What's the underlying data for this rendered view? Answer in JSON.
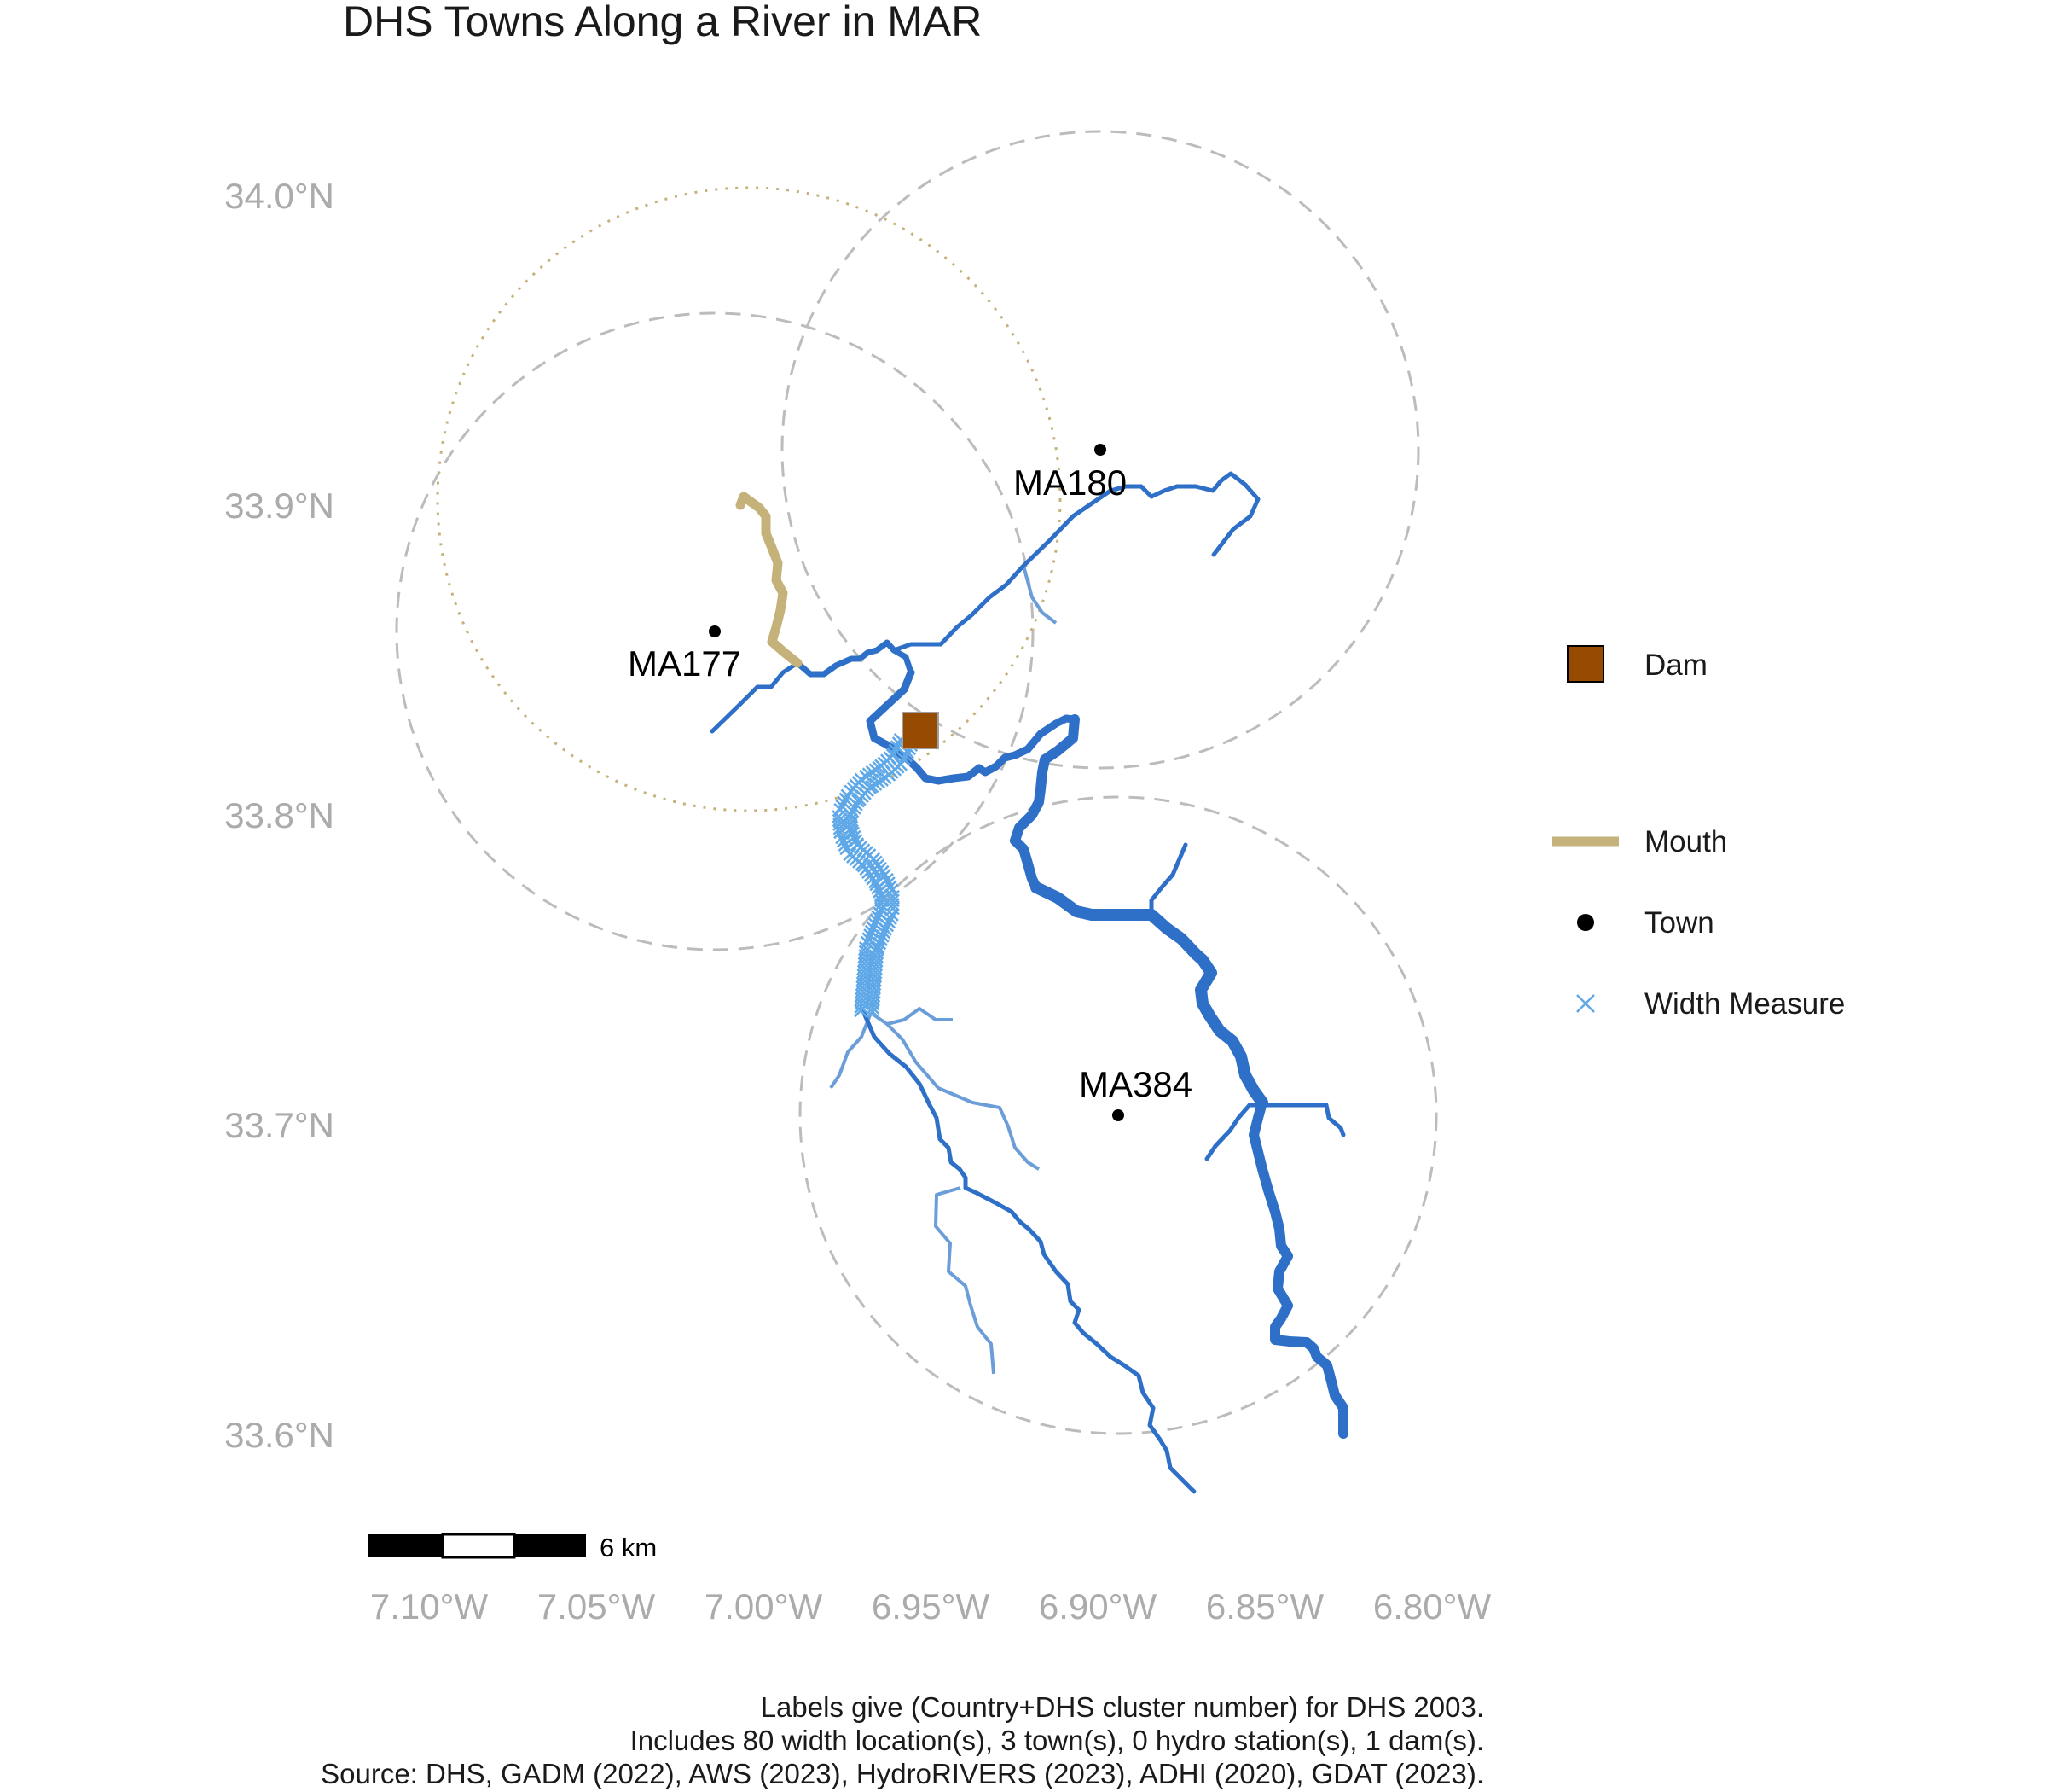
{
  "title": "DHS Towns Along a River in MAR",
  "lat_ticks": [
    "33.6°N",
    "33.7°N",
    "33.8°N",
    "33.9°N",
    "34.0°N"
  ],
  "lon_ticks": [
    "7.10°W",
    "7.05°W",
    "7.00°W",
    "6.95°W",
    "6.90°W",
    "6.85°W",
    "6.80°W"
  ],
  "towns": [
    {
      "label": "MA180",
      "lon": -6.898,
      "lat": 33.919
    },
    {
      "label": "MA177",
      "lon": -6.992,
      "lat": 33.861
    },
    {
      "label": "MA384",
      "lon": -6.893,
      "lat": 33.704
    }
  ],
  "dam": {
    "lon": -6.955,
    "lat": 33.826
  },
  "buffer_radius_km": 10,
  "river_mouth_color": "#C4B27A",
  "river_color": "#2E6FC8",
  "tributary_color": "#6B9DD8",
  "width_measure_color": "#5FA8E8",
  "dam_color": "#964B00",
  "legend": {
    "dam": "Dam",
    "mouth": "Mouth",
    "town": "Town",
    "width_measure": "Width Measure"
  },
  "scale_bar": {
    "label": "6 km"
  },
  "caption": [
    "Labels give (Country+DHS cluster number) for DHS 2003.",
    "Includes 80 width location(s), 3 town(s), 0 hydro station(s), 1 dam(s).",
    "Source: DHS, GADM (2022), AWS (2023), HydroRIVERS (2023), ADHI (2020), GDAT (2023)."
  ]
}
